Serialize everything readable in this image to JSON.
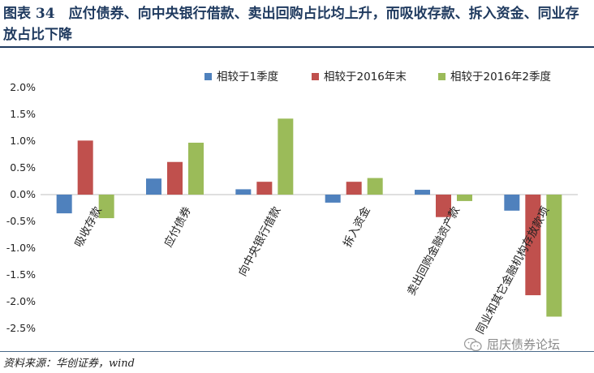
{
  "header": {
    "title": "图表 34　应付债券、向中央银行借款、卖出回购占比均上升，而吸收存款、拆入资金、同业存放占比下降"
  },
  "footer": {
    "source": "资料来源：华创证券，wind",
    "watermark": "屈庆债券论坛",
    "watermark_icon": "wechat-icon"
  },
  "chart_data": {
    "type": "bar",
    "categories": [
      "吸收存款",
      "应付债券",
      "向中央银行借款",
      "拆入资金",
      "卖出回购金融资产款",
      "同业和其它金融机构存放款项"
    ],
    "series": [
      {
        "name": "相较于1季度",
        "color": "#4f81bd",
        "values": [
          -0.35,
          0.3,
          0.1,
          -0.15,
          0.09,
          -0.3
        ]
      },
      {
        "name": "相较于2016年末",
        "color": "#c0504d",
        "values": [
          1.01,
          0.61,
          0.24,
          0.24,
          -0.42,
          -1.88
        ]
      },
      {
        "name": "相较于2016年2季度",
        "color": "#9bbb59",
        "values": [
          -0.44,
          0.97,
          1.42,
          0.31,
          -0.12,
          -2.28
        ]
      }
    ],
    "y_ticks": [
      "2.0%",
      "1.5%",
      "1.0%",
      "0.5%",
      "0.0%",
      "-0.5%",
      "-1.0%",
      "-1.5%",
      "-2.0%",
      "-2.5%"
    ],
    "ylim": [
      -2.5,
      2.0
    ],
    "y_unit": "%",
    "legend_position": "top",
    "grid": false
  }
}
